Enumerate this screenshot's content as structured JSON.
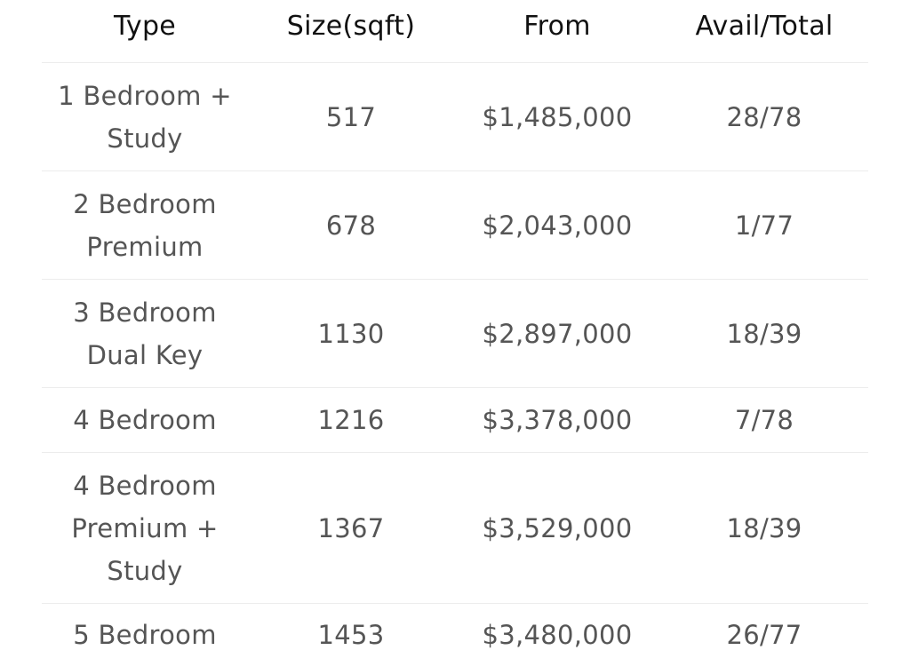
{
  "table": {
    "headers": [
      "Type",
      "Size(sqft)",
      "From",
      "Avail/Total"
    ],
    "rows": [
      {
        "type": "1 Bedroom + Study",
        "size": "517",
        "from": "$1,485,000",
        "avail": "28/78"
      },
      {
        "type": "2 Bedroom Premium",
        "size": "678",
        "from": "$2,043,000",
        "avail": "1/77"
      },
      {
        "type": "3 Bedroom Dual Key",
        "size": "1130",
        "from": "$2,897,000",
        "avail": "18/39"
      },
      {
        "type": "4 Bedroom",
        "size": "1216",
        "from": "$3,378,000",
        "avail": "7/78"
      },
      {
        "type": "4 Bedroom Premium + Study",
        "size": "1367",
        "from": "$3,529,000",
        "avail": "18/39"
      },
      {
        "type": "5 Bedroom",
        "size": "1453",
        "from": "$3,480,000",
        "avail": "26/77"
      }
    ]
  }
}
